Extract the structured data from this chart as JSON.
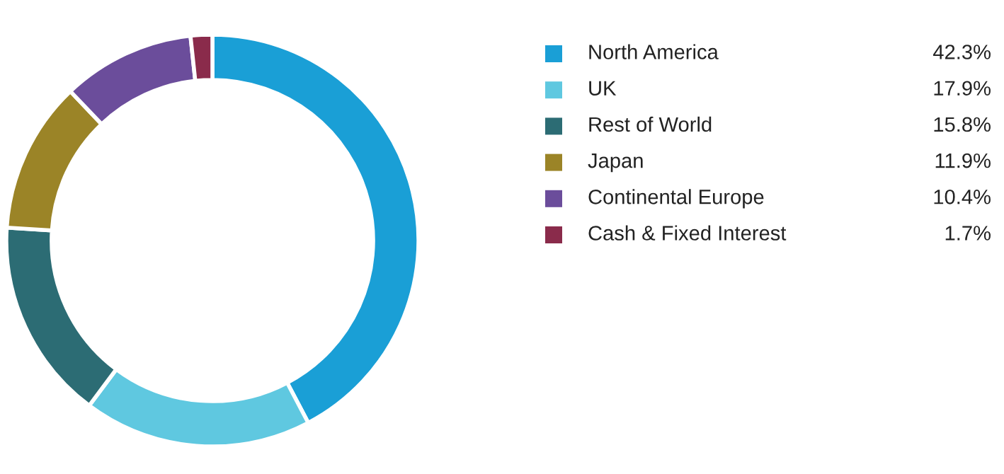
{
  "chart_data": {
    "type": "donut",
    "categories": [
      "North America",
      "UK",
      "Rest of World",
      "Japan",
      "Continental Europe",
      "Cash & Fixed Interest"
    ],
    "values": [
      42.3,
      17.9,
      15.8,
      11.9,
      10.4,
      1.7
    ],
    "value_labels": [
      "42.3%",
      "17.9%",
      "15.8%",
      "11.9%",
      "10.4%",
      "1.7%"
    ],
    "colors": [
      "#1a9fd6",
      "#5fc8e0",
      "#2c6c74",
      "#9b8427",
      "#6b4d9b",
      "#8a2b4b"
    ],
    "legend": "right"
  }
}
